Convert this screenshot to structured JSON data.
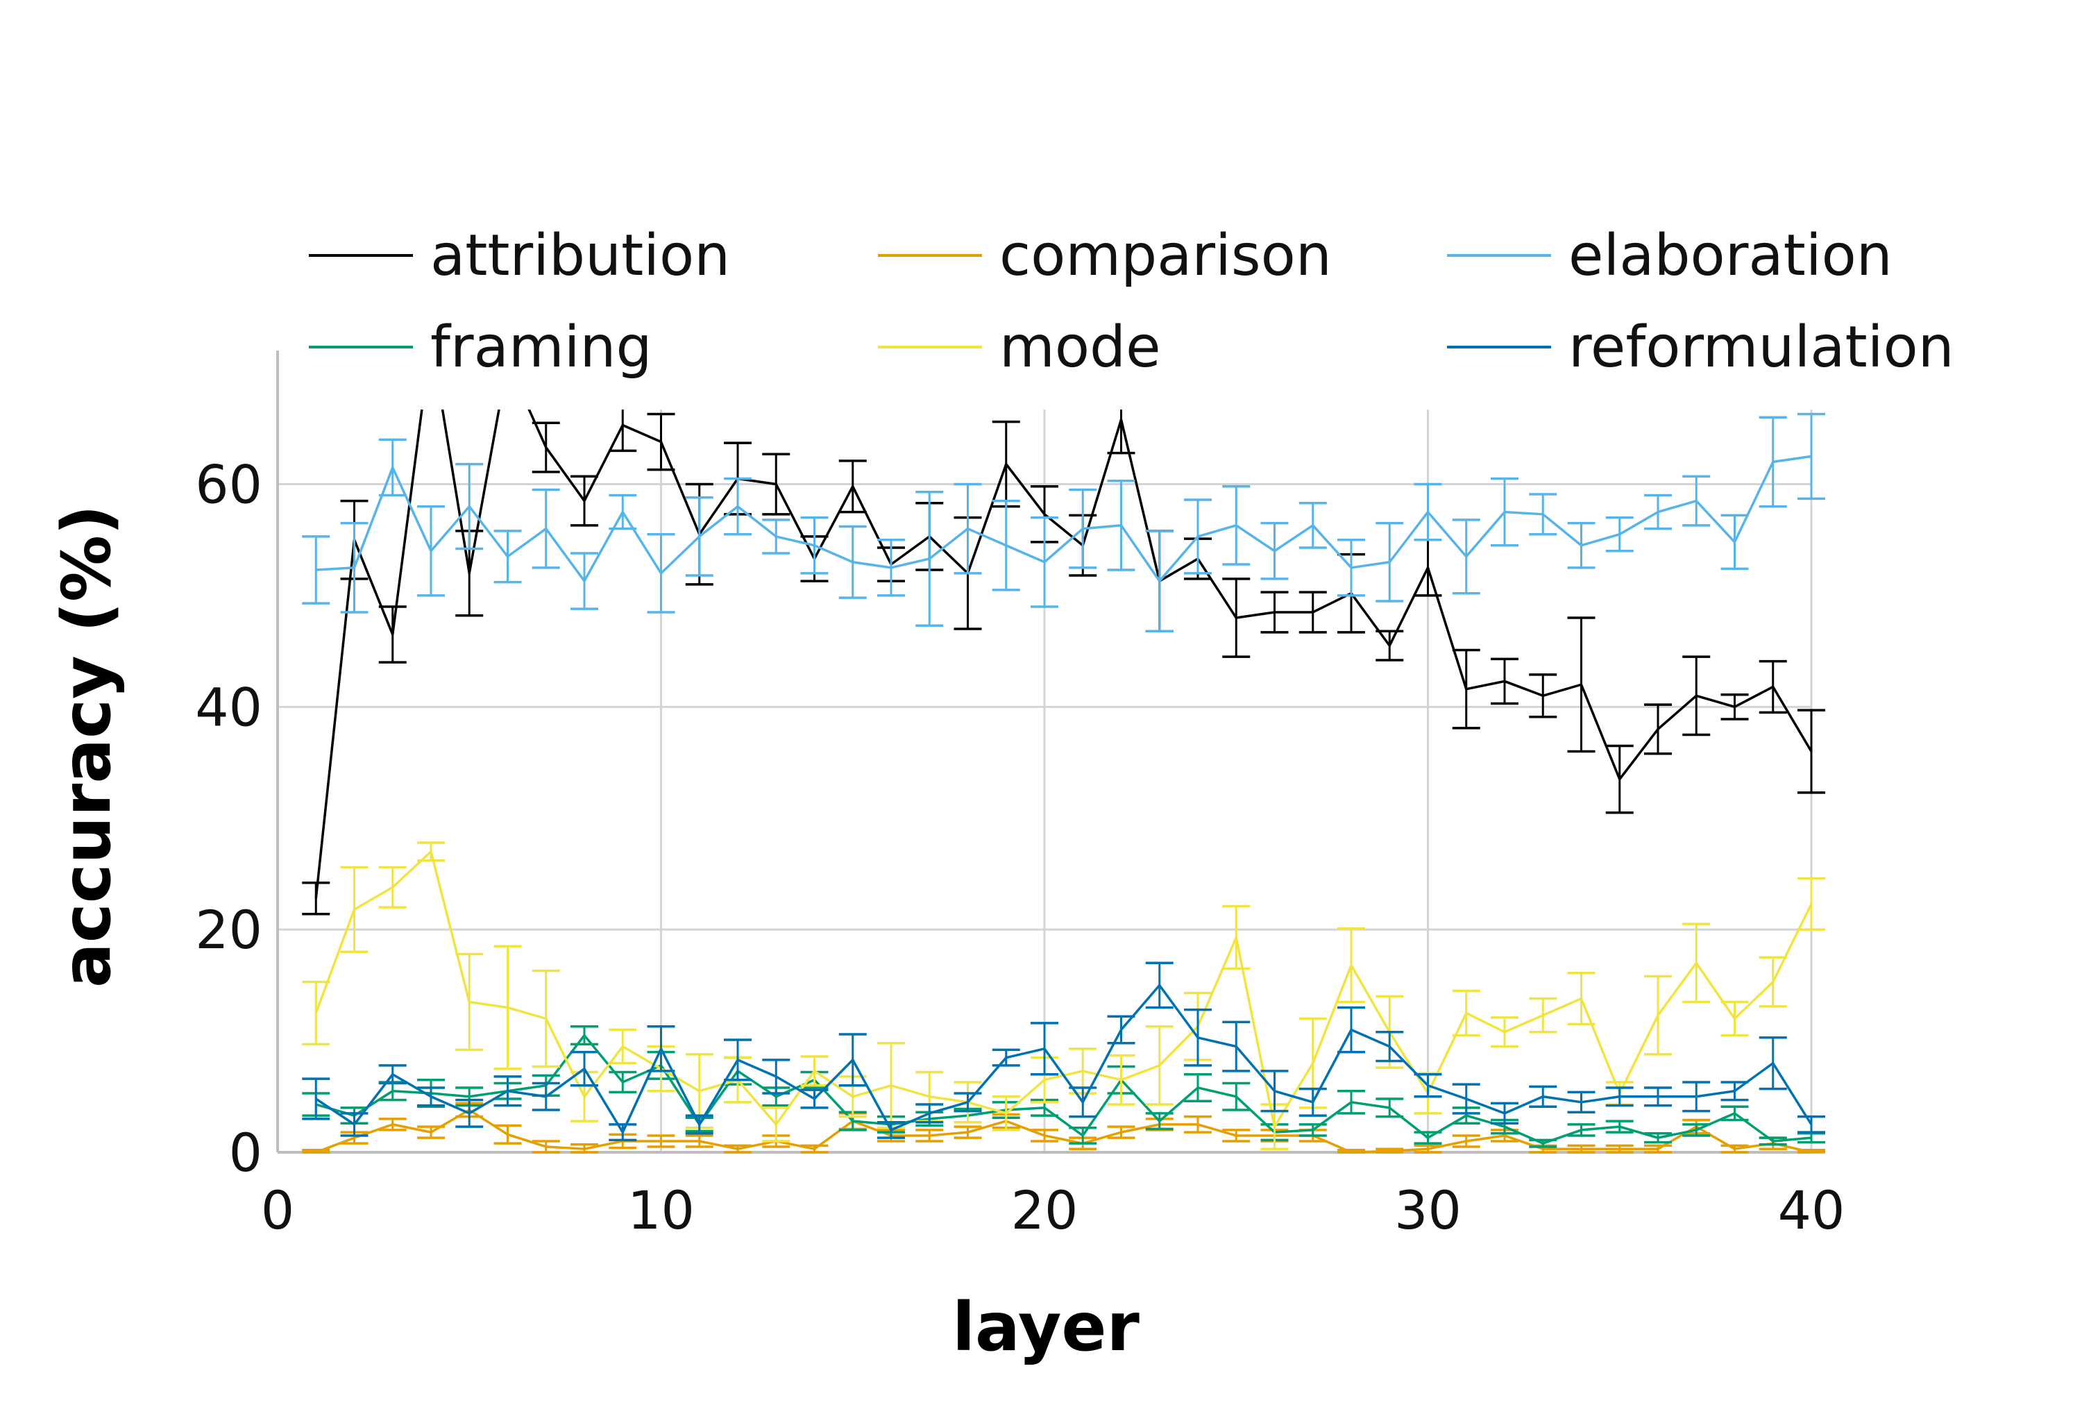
{
  "chart_data": {
    "type": "line",
    "title": "",
    "xlabel": "layer",
    "ylabel": "accuracy (%)",
    "xlim": [
      0,
      40
    ],
    "ylim": [
      0,
      72
    ],
    "xticks": [
      0,
      10,
      20,
      30,
      40
    ],
    "yticks": [
      0,
      20,
      40,
      60
    ],
    "grid": true,
    "legend": "top, 3 columns",
    "x": [
      1,
      2,
      3,
      4,
      5,
      6,
      7,
      8,
      9,
      10,
      11,
      12,
      13,
      14,
      15,
      16,
      17,
      18,
      19,
      20,
      21,
      22,
      23,
      24,
      25,
      26,
      27,
      28,
      29,
      30,
      31,
      32,
      33,
      34,
      35,
      36,
      37,
      38,
      39,
      40
    ],
    "series": [
      {
        "name": "attribution",
        "color": "#000000",
        "values": [
          22.8,
          55,
          46.5,
          73,
          52,
          71,
          63.3,
          58.5,
          65.3,
          63.8,
          55.5,
          60.5,
          60,
          53.3,
          59.8,
          52.8,
          55.3,
          52,
          61.8,
          57.3,
          54.5,
          65.8,
          51.3,
          53.3,
          48,
          48.5,
          48.5,
          50.2,
          45.5,
          52.5,
          41.6,
          42.3,
          41,
          42,
          33.5,
          38,
          41,
          40,
          41.8,
          36
        ],
        "err": [
          1.4,
          3.5,
          2.5,
          3.5,
          3.8,
          2,
          2.2,
          2.2,
          2.3,
          2.5,
          4.5,
          3.2,
          2.7,
          2,
          2.3,
          1.5,
          3,
          5,
          3.8,
          2.5,
          2.7,
          3,
          4.5,
          1.8,
          3.5,
          1.8,
          1.8,
          3.5,
          1.3,
          2.5,
          3.5,
          2,
          1.9,
          6,
          3,
          2.2,
          3.5,
          1.1,
          2.3,
          3.7
        ]
      },
      {
        "name": "comparison",
        "color": "#E69F00",
        "values": [
          0,
          1.3,
          2.5,
          1.8,
          3.8,
          1.6,
          0.5,
          0.3,
          1,
          1,
          1,
          0.3,
          1,
          0.3,
          2.8,
          1.5,
          1.5,
          1.8,
          2.8,
          1.5,
          0.8,
          1.8,
          2.5,
          2.5,
          1.5,
          1.5,
          1.5,
          0,
          0.1,
          0.3,
          1,
          1.5,
          0.3,
          0.3,
          0.3,
          0.3,
          2.3,
          0.3,
          0.8,
          0
        ],
        "err": [
          0.2,
          0.5,
          0.5,
          0.5,
          0.6,
          0.8,
          0.5,
          0.4,
          0.6,
          0.5,
          0.5,
          0.3,
          0.5,
          0.3,
          0.7,
          0.5,
          0.5,
          0.5,
          0.6,
          0.5,
          0.5,
          0.5,
          0.5,
          0.7,
          0.5,
          0.5,
          0.5,
          0.2,
          0.2,
          0.3,
          0.5,
          0.5,
          0.3,
          0.3,
          0.3,
          0.3,
          0.6,
          0.3,
          0.5,
          0.2
        ]
      },
      {
        "name": "elaboration",
        "color": "#56B4E9",
        "values": [
          52.3,
          52.5,
          61.5,
          54,
          58,
          53.5,
          56,
          51.3,
          57.5,
          52,
          55.3,
          58,
          55.3,
          54.5,
          53,
          52.5,
          53.3,
          56,
          54.5,
          53,
          56,
          56.3,
          51.3,
          55.3,
          56.3,
          54,
          56.3,
          52.5,
          53,
          57.5,
          53.5,
          57.5,
          57.3,
          54.5,
          55.5,
          57.5,
          58.5,
          54.8,
          62,
          62.5
        ],
        "err": [
          3,
          4,
          2.5,
          4,
          3.8,
          2.3,
          3.5,
          2.5,
          1.5,
          3.5,
          3.5,
          2.5,
          1.5,
          2.5,
          3.2,
          2.5,
          6,
          4,
          4,
          4,
          3.5,
          4,
          4.5,
          3.3,
          3.5,
          2.5,
          2,
          2.5,
          3.5,
          2.5,
          3.3,
          3,
          1.8,
          2,
          1.5,
          1.5,
          2.2,
          2.4,
          4,
          3.8
        ]
      },
      {
        "name": "framing",
        "color": "#009E73",
        "values": [
          4.3,
          3.3,
          5.5,
          5.3,
          5,
          5.5,
          6,
          10.5,
          6.3,
          7.8,
          2.5,
          7.3,
          5,
          6.5,
          2.8,
          2.5,
          3,
          3.3,
          3.8,
          4,
          1.5,
          6.5,
          2.8,
          5.8,
          5,
          1.8,
          2,
          4.5,
          4,
          1.3,
          3.3,
          2.3,
          0.8,
          2,
          2.3,
          1.3,
          2,
          3.5,
          1,
          1.3
        ],
        "err": [
          1,
          0.7,
          0.8,
          1.2,
          0.8,
          0.7,
          0.9,
          0.8,
          0.9,
          1.2,
          0.6,
          1.2,
          0.8,
          0.7,
          0.8,
          0.7,
          0.6,
          0.6,
          0.7,
          0.7,
          0.7,
          1.2,
          0.7,
          1.2,
          1.2,
          0.7,
          0.5,
          1,
          0.8,
          0.5,
          0.7,
          0.6,
          0.3,
          0.5,
          0.5,
          0.4,
          0.5,
          0.6,
          0.3,
          0.4
        ]
      },
      {
        "name": "mode",
        "color": "#F0E442",
        "values": [
          12.5,
          21.8,
          23.8,
          27,
          13.5,
          13,
          12,
          5,
          9.5,
          7.5,
          5.5,
          6.5,
          2.5,
          7.3,
          5,
          6,
          5,
          4.5,
          3.5,
          6.5,
          7.3,
          6.5,
          7.8,
          11.3,
          19.3,
          2.3,
          8,
          16.8,
          10.8,
          5.3,
          12.5,
          10.8,
          12.3,
          13.8,
          5.3,
          12.3,
          17,
          12,
          15.3,
          22.3
        ],
        "err": [
          2.8,
          3.8,
          1.8,
          0.8,
          4.3,
          5.5,
          4.3,
          2.2,
          1.5,
          2,
          3.3,
          2,
          1.5,
          1.3,
          1.8,
          3.8,
          2.2,
          1.8,
          1.5,
          2,
          2,
          2.2,
          3.5,
          3,
          2.8,
          2,
          4,
          3.3,
          3.2,
          1.8,
          2,
          1.3,
          1.5,
          2.3,
          1,
          3.5,
          3.5,
          1.5,
          2.2,
          2.3
        ]
      },
      {
        "name": "reformulation",
        "color": "#0072B2",
        "values": [
          4.8,
          2.5,
          7,
          5,
          3.5,
          5.5,
          5,
          7.5,
          1.8,
          9.3,
          2.5,
          8.3,
          6.8,
          4.8,
          8.3,
          2,
          3.5,
          4.5,
          8.5,
          9.3,
          4.5,
          11,
          15,
          10.3,
          9.5,
          5.5,
          4.5,
          11,
          9.5,
          6,
          4.8,
          3.5,
          5,
          4.5,
          5,
          5,
          5,
          5.5,
          8,
          2.5
        ],
        "err": [
          1.8,
          1,
          0.8,
          0.8,
          1.2,
          1.3,
          1.2,
          1.5,
          0.7,
          2,
          0.8,
          1.8,
          1.5,
          0.8,
          2.3,
          0.7,
          0.8,
          0.8,
          0.7,
          2.3,
          1.3,
          1.2,
          2,
          2.5,
          2.2,
          1.8,
          1.2,
          2,
          1.3,
          1,
          1.3,
          0.9,
          0.9,
          0.9,
          0.8,
          0.8,
          1.3,
          0.8,
          2.3,
          0.7
        ]
      }
    ]
  }
}
